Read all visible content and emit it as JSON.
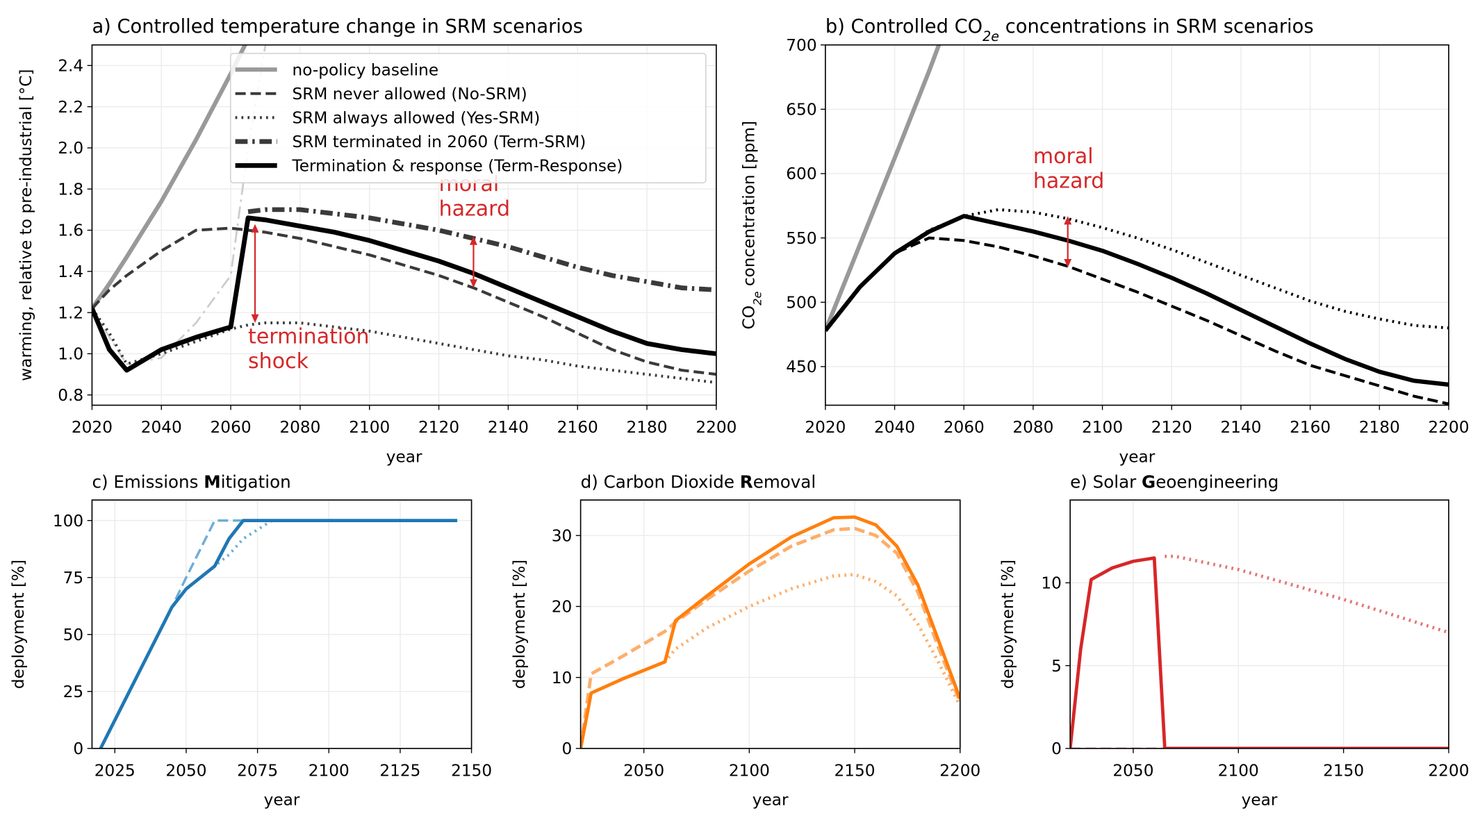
{
  "chart_data": [
    {
      "type": "line",
      "title": "a) Controlled temperature change in SRM scenarios",
      "xlabel": "year",
      "ylabel": "warming, relative to pre-industrial [°C]",
      "x": [
        2020,
        2025,
        2030,
        2040,
        2050,
        2060,
        2065,
        2070,
        2080,
        2090,
        2100,
        2110,
        2120,
        2130,
        2140,
        2150,
        2160,
        2170,
        2180,
        2190,
        2200
      ],
      "xlim": [
        2020,
        2200
      ],
      "xticks": [
        2020,
        2040,
        2060,
        2080,
        2100,
        2120,
        2140,
        2160,
        2180,
        2200
      ],
      "ylim": [
        0.75,
        2.5
      ],
      "yticks": [
        0.8,
        {
          "value": 1,
          "label": "1.0"
        },
        1.2,
        1.4,
        1.6,
        1.8,
        {
          "value": 2,
          "label": "2.0"
        },
        2.2,
        2.4
      ],
      "grid": true,
      "legend": "upper center",
      "series": [
        {
          "color": "#cccccc",
          "dash": "dashdot",
          "width": 2,
          "values": [
            1.22,
            1.08,
            0.95,
            0.98,
            1.15,
            1.38,
            2.0,
            2.5,
            null,
            null,
            null,
            null,
            null,
            null,
            null,
            null,
            null,
            null,
            null,
            null,
            null
          ]
        },
        {
          "name": "no-policy baseline",
          "color": "#999999",
          "dash": "solid",
          "width": 4.5,
          "values": [
            1.22,
            1.34,
            1.47,
            1.74,
            2.04,
            2.36,
            2.53,
            null,
            null,
            null,
            null,
            null,
            null,
            null,
            null,
            null,
            null,
            null,
            null,
            null,
            null
          ]
        },
        {
          "name": "SRM never allowed (No-SRM)",
          "color": "#3a3a3a",
          "dash": "dashed",
          "width": 3,
          "values": [
            1.22,
            1.31,
            1.38,
            1.5,
            1.6,
            1.61,
            1.6,
            1.59,
            1.56,
            1.52,
            1.48,
            1.43,
            1.38,
            1.32,
            1.25,
            1.18,
            1.1,
            1.02,
            0.96,
            0.92,
            0.9
          ]
        },
        {
          "name": "SRM always allowed (Yes-SRM)",
          "color": "#3a3a3a",
          "dash": "dotted",
          "width": 3,
          "values": [
            1.22,
            1.1,
            0.95,
            1.0,
            1.06,
            1.12,
            1.14,
            1.15,
            1.15,
            1.13,
            1.11,
            1.08,
            1.05,
            1.02,
            0.99,
            0.97,
            0.94,
            0.92,
            0.9,
            0.88,
            0.86
          ]
        },
        {
          "name": "SRM terminated in 2060 (Term-SRM)",
          "color": "#3a3a3a",
          "dash": "dashdot",
          "width": 5,
          "values": [
            null,
            null,
            null,
            null,
            null,
            null,
            1.69,
            1.7,
            1.7,
            1.68,
            1.66,
            1.63,
            1.6,
            1.56,
            1.52,
            1.47,
            1.42,
            1.38,
            1.35,
            1.32,
            1.31
          ]
        },
        {
          "name": "Termination & response (Term-Response)",
          "color": "#000000",
          "dash": "solid",
          "width": 5,
          "values": [
            1.22,
            1.02,
            0.92,
            1.02,
            1.08,
            1.13,
            1.66,
            1.65,
            1.62,
            1.59,
            1.55,
            1.5,
            1.45,
            1.39,
            1.32,
            1.25,
            1.18,
            1.11,
            1.05,
            1.02,
            1.0
          ]
        }
      ],
      "annotations": [
        {
          "text": [
            "moral",
            "hazard"
          ]
        },
        {
          "text": [
            "termination",
            "shock"
          ]
        }
      ]
    },
    {
      "type": "line",
      "title": [
        "b) Controlled CO",
        "2e",
        " concentrations in SRM scenarios"
      ],
      "xlabel": "year",
      "ylabel": [
        "CO",
        "2e",
        " concentration [ppm]"
      ],
      "x": [
        2020,
        2030,
        2040,
        2050,
        2060,
        2070,
        2080,
        2090,
        2100,
        2110,
        2120,
        2130,
        2140,
        2150,
        2160,
        2170,
        2180,
        2190,
        2200
      ],
      "xlim": [
        2020,
        2200
      ],
      "xticks": [
        2020,
        2040,
        2060,
        2080,
        2100,
        2120,
        2140,
        2160,
        2180,
        2200
      ],
      "ylim": [
        420,
        700
      ],
      "yticks": [
        450,
        500,
        550,
        600,
        650,
        700
      ],
      "grid": true,
      "series": [
        {
          "color": "#999999",
          "dash": "solid",
          "width": 4.5,
          "values": [
            478,
            545,
            612,
            680,
            752,
            null,
            null,
            null,
            null,
            null,
            null,
            null,
            null,
            null,
            null,
            null,
            null,
            null,
            null
          ]
        },
        {
          "color": "#000000",
          "dash": "dashed",
          "width": 3,
          "values": [
            478,
            512,
            538,
            550,
            548,
            543,
            536,
            528,
            518,
            508,
            497,
            486,
            474,
            462,
            451,
            443,
            435,
            427,
            421
          ]
        },
        {
          "color": "#000000",
          "dash": "dotted",
          "width": 3,
          "values": [
            478,
            512,
            538,
            556,
            567,
            572,
            570,
            565,
            558,
            550,
            541,
            531,
            521,
            511,
            501,
            493,
            487,
            482,
            480
          ]
        },
        {
          "color": "#000000",
          "dash": "solid",
          "width": 4.5,
          "values": [
            478,
            512,
            538,
            555,
            567,
            561,
            555,
            548,
            540,
            530,
            519,
            507,
            494,
            481,
            468,
            456,
            446,
            439,
            436
          ]
        }
      ],
      "annotations": [
        {
          "text": [
            "moral",
            "hazard"
          ]
        }
      ]
    },
    {
      "type": "line",
      "title": [
        "c) Emissions ",
        "M",
        "itigation"
      ],
      "xlabel": "year",
      "ylabel": "deployment [%]",
      "x": [
        2020,
        2045,
        2050,
        2060,
        2065,
        2070,
        2080,
        2145
      ],
      "xlim": [
        2017,
        2150
      ],
      "xticks": [
        2025,
        2050,
        2075,
        2100,
        2125,
        2150
      ],
      "ylim": [
        0,
        109
      ],
      "yticks": [
        0,
        25,
        50,
        75,
        100
      ],
      "grid": true,
      "series": [
        {
          "color": "#6baed6",
          "dash": "dashed",
          "width": 2.5,
          "values": [
            0,
            62,
            75,
            100,
            100,
            100,
            null,
            null
          ]
        },
        {
          "color": "#6baed6",
          "dash": "dotted",
          "width": 3,
          "values": [
            0,
            62,
            70,
            80,
            85,
            92,
            100,
            null
          ]
        },
        {
          "color": "#1f77b4",
          "dash": "solid",
          "width": 3.5,
          "values": [
            0,
            62,
            70,
            80,
            92,
            100,
            100,
            100
          ]
        }
      ]
    },
    {
      "type": "line",
      "title": [
        "d) Carbon Dioxide ",
        "R",
        "emoval"
      ],
      "xlabel": "year",
      "ylabel": "deployment [%]",
      "x": [
        2020,
        2025,
        2040,
        2060,
        2065,
        2080,
        2100,
        2120,
        2140,
        2150,
        2160,
        2170,
        2180,
        2190,
        2200
      ],
      "xlim": [
        2020,
        2200
      ],
      "xticks": [
        2050,
        2100,
        2150,
        2200
      ],
      "ylim": [
        0,
        35
      ],
      "yticks": [
        0,
        10,
        20,
        30
      ],
      "grid": true,
      "series": [
        {
          "color": "#fdae6b",
          "dash": "dotted",
          "width": 3.5,
          "values": [
            0,
            7.8,
            9.8,
            12.2,
            14,
            17,
            20,
            22.5,
            24.3,
            24.5,
            23.5,
            21.5,
            17.5,
            12,
            6
          ]
        },
        {
          "color": "#fdae6b",
          "dash": "dashed",
          "width": 3.5,
          "values": [
            0,
            10.5,
            13,
            16.5,
            17.8,
            21,
            25,
            28.5,
            30.8,
            31,
            30,
            27.5,
            22,
            14,
            6.5
          ]
        },
        {
          "color": "#ff7f0e",
          "dash": "solid",
          "width": 3.5,
          "values": [
            0,
            7.8,
            9.8,
            12.2,
            18,
            21.5,
            26,
            29.8,
            32.5,
            32.6,
            31.5,
            28.5,
            23,
            15,
            7
          ]
        }
      ]
    },
    {
      "type": "line",
      "title": [
        "e) Solar ",
        "G",
        "eoengineering"
      ],
      "xlabel": "year",
      "ylabel": "deployment [%]",
      "x": [
        2020,
        2025,
        2030,
        2040,
        2050,
        2060,
        2065,
        2070,
        2100,
        2150,
        2200
      ],
      "xlim": [
        2020,
        2200
      ],
      "xticks": [
        2050,
        2100,
        2150,
        2200
      ],
      "ylim": [
        0,
        15
      ],
      "yticks": [
        0,
        5,
        10
      ],
      "grid": true,
      "series": [
        {
          "color": "#eb8a8b",
          "dash": "dashed",
          "width": 2,
          "values": [
            0,
            0,
            0,
            0,
            0,
            0,
            0,
            0,
            0,
            0,
            0
          ]
        },
        {
          "color": "#e57373",
          "dash": "dotted",
          "width": 3.5,
          "values": [
            null,
            null,
            null,
            null,
            null,
            null,
            11.6,
            11.6,
            10.8,
            9,
            7
          ]
        },
        {
          "color": "#d62728",
          "dash": "solid",
          "width": 3.5,
          "values": [
            0,
            6,
            10.2,
            10.9,
            11.3,
            11.5,
            0,
            0,
            0,
            0,
            0
          ]
        }
      ]
    }
  ]
}
